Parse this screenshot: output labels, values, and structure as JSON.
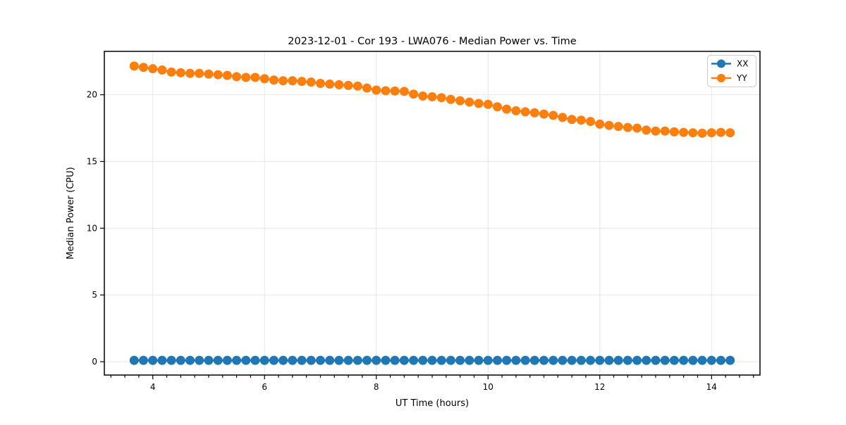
{
  "chart_data": {
    "type": "line",
    "title": "2023-12-01 - Cor 193 - LWA076 - Median Power vs. Time",
    "xlabel": "UT Time (hours)",
    "ylabel": "Median Power (CPU)",
    "xlim": [
      3.133,
      14.867
    ],
    "ylim": [
      -1.0,
      23.25
    ],
    "x_major_ticks": [
      4,
      6,
      8,
      10,
      12,
      14
    ],
    "x_minor_tick_step": 0.25,
    "y_major_ticks": [
      0,
      5,
      10,
      15,
      20
    ],
    "grid": true,
    "grid_color": "#e6e6e6",
    "legend_position": "upper right",
    "x": [
      3.667,
      3.833,
      4.0,
      4.167,
      4.333,
      4.5,
      4.667,
      4.833,
      5.0,
      5.167,
      5.333,
      5.5,
      5.667,
      5.833,
      6.0,
      6.167,
      6.333,
      6.5,
      6.667,
      6.833,
      7.0,
      7.167,
      7.333,
      7.5,
      7.667,
      7.833,
      8.0,
      8.167,
      8.333,
      8.5,
      8.667,
      8.833,
      9.0,
      9.167,
      9.333,
      9.5,
      9.667,
      9.833,
      10.0,
      10.167,
      10.333,
      10.5,
      10.667,
      10.833,
      11.0,
      11.167,
      11.333,
      11.5,
      11.667,
      11.833,
      12.0,
      12.167,
      12.333,
      12.5,
      12.667,
      12.833,
      13.0,
      13.167,
      13.333,
      13.5,
      13.667,
      13.833,
      14.0,
      14.167,
      14.333
    ],
    "series": [
      {
        "name": "XX",
        "color": "#1f77b4",
        "marker": "circle",
        "values": [
          0.1,
          0.1,
          0.1,
          0.1,
          0.1,
          0.1,
          0.1,
          0.1,
          0.1,
          0.1,
          0.1,
          0.1,
          0.1,
          0.1,
          0.1,
          0.1,
          0.1,
          0.1,
          0.1,
          0.1,
          0.1,
          0.1,
          0.1,
          0.1,
          0.1,
          0.1,
          0.1,
          0.1,
          0.1,
          0.1,
          0.1,
          0.1,
          0.1,
          0.1,
          0.1,
          0.1,
          0.1,
          0.1,
          0.1,
          0.1,
          0.1,
          0.1,
          0.1,
          0.1,
          0.1,
          0.1,
          0.1,
          0.1,
          0.1,
          0.1,
          0.1,
          0.1,
          0.1,
          0.1,
          0.1,
          0.1,
          0.1,
          0.1,
          0.1,
          0.1,
          0.1,
          0.1,
          0.1,
          0.1,
          0.1
        ]
      },
      {
        "name": "YY",
        "color": "#ff7f0e",
        "marker": "circle",
        "values": [
          22.15,
          22.05,
          21.95,
          21.85,
          21.7,
          21.65,
          21.6,
          21.6,
          21.55,
          21.5,
          21.45,
          21.35,
          21.3,
          21.3,
          21.2,
          21.1,
          21.05,
          21.05,
          21.0,
          20.95,
          20.85,
          20.8,
          20.75,
          20.7,
          20.65,
          20.5,
          20.35,
          20.3,
          20.28,
          20.25,
          20.05,
          19.9,
          19.85,
          19.78,
          19.65,
          19.55,
          19.45,
          19.35,
          19.28,
          19.1,
          18.92,
          18.8,
          18.72,
          18.65,
          18.55,
          18.45,
          18.3,
          18.15,
          18.1,
          18.0,
          17.8,
          17.7,
          17.62,
          17.55,
          17.5,
          17.35,
          17.28,
          17.28,
          17.22,
          17.18,
          17.15,
          17.12,
          17.15,
          17.18,
          17.15
        ]
      }
    ]
  }
}
